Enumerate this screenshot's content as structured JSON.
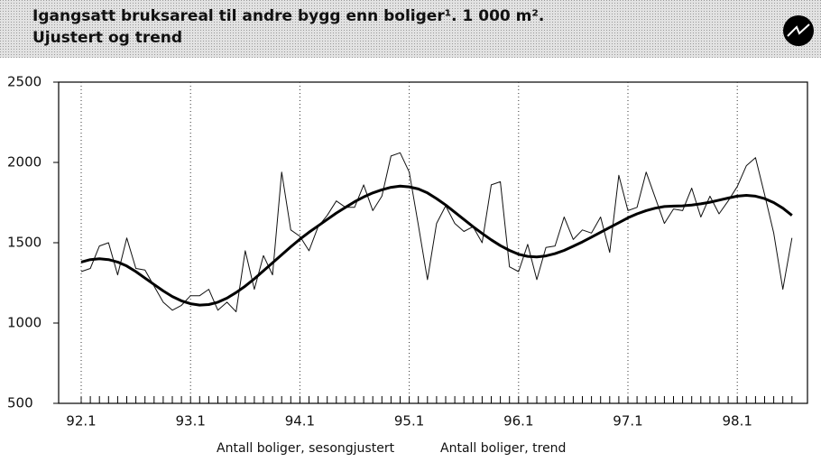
{
  "chart_data": {
    "type": "line",
    "title": [
      "Igangsatt bruksareal til andre bygg enn boliger¹. 1 000 m².",
      "Ujustert og trend"
    ],
    "categories": [
      "92.1",
      null,
      null,
      null,
      null,
      null,
      null,
      null,
      null,
      null,
      null,
      null,
      "93.1",
      null,
      null,
      null,
      null,
      null,
      null,
      null,
      null,
      null,
      null,
      null,
      "94.1",
      null,
      null,
      null,
      null,
      null,
      null,
      null,
      null,
      null,
      null,
      null,
      "95.1",
      null,
      null,
      null,
      null,
      null,
      null,
      null,
      null,
      null,
      null,
      null,
      "96.1",
      null,
      null,
      null,
      null,
      null,
      null,
      null,
      null,
      null,
      null,
      null,
      "97.1",
      null,
      null,
      null,
      null,
      null,
      null,
      null,
      null,
      null,
      null,
      null,
      "98.1",
      null,
      null,
      null,
      null,
      null,
      null
    ],
    "series": [
      {
        "name": "Antall boliger, sesongjustert",
        "color": "#111111",
        "width": 1,
        "values": [
          1320,
          1340,
          1480,
          1500,
          1300,
          1530,
          1340,
          1330,
          1230,
          1130,
          1080,
          1110,
          1170,
          1170,
          1210,
          1080,
          1130,
          1070,
          1450,
          1210,
          1420,
          1300,
          1940,
          1580,
          1540,
          1450,
          1600,
          1670,
          1760,
          1720,
          1720,
          1860,
          1700,
          1790,
          2040,
          2060,
          1940,
          1610,
          1270,
          1620,
          1730,
          1620,
          1570,
          1600,
          1500,
          1860,
          1880,
          1350,
          1320,
          1490,
          1270,
          1470,
          1480,
          1660,
          1520,
          1580,
          1560,
          1660,
          1440,
          1920,
          1700,
          1720,
          1940,
          1780,
          1620,
          1710,
          1700,
          1840,
          1660,
          1790,
          1680,
          1760,
          1850,
          1980,
          2030,
          1800,
          1560,
          1210,
          1530
        ]
      },
      {
        "name": "Antall boliger, trend",
        "color": "#000000",
        "width": 3,
        "values": [
          1380,
          1395,
          1400,
          1395,
          1380,
          1355,
          1320,
          1280,
          1240,
          1200,
          1165,
          1138,
          1120,
          1112,
          1115,
          1130,
          1155,
          1190,
          1230,
          1275,
          1325,
          1375,
          1425,
          1475,
          1522,
          1565,
          1605,
          1645,
          1685,
          1720,
          1755,
          1785,
          1810,
          1830,
          1845,
          1852,
          1848,
          1835,
          1810,
          1775,
          1735,
          1690,
          1645,
          1600,
          1558,
          1518,
          1482,
          1452,
          1428,
          1415,
          1412,
          1418,
          1432,
          1452,
          1478,
          1505,
          1535,
          1565,
          1595,
          1625,
          1655,
          1680,
          1700,
          1715,
          1725,
          1728,
          1730,
          1735,
          1742,
          1752,
          1765,
          1778,
          1790,
          1795,
          1790,
          1775,
          1750,
          1715,
          1670
        ]
      }
    ],
    "ylim": [
      500,
      2500
    ],
    "yticks": [
      500,
      1000,
      1500,
      2000,
      2500
    ],
    "grid": true
  }
}
